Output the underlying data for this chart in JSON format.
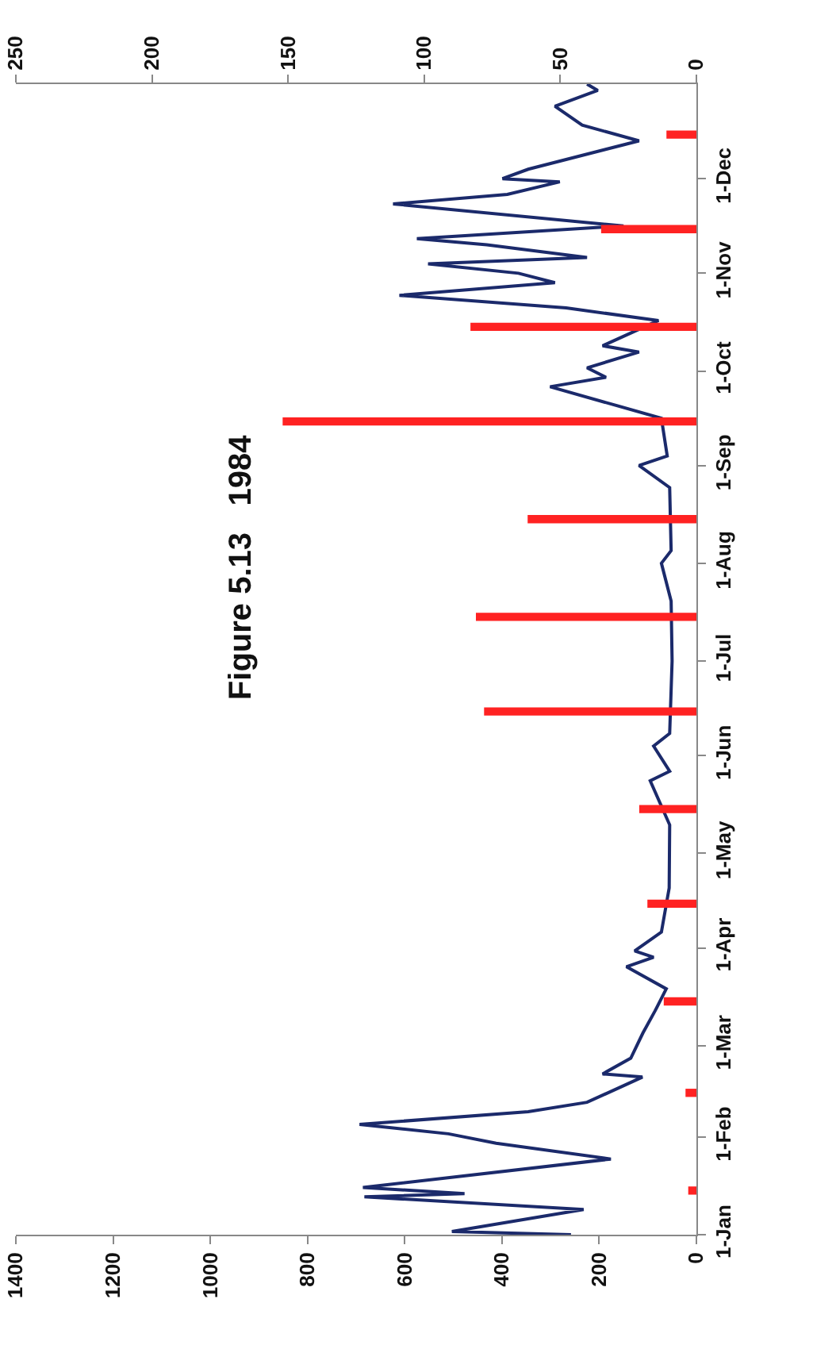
{
  "chart_data": {
    "type": "line",
    "title": "Figure 5.13   1984",
    "orientation": "horizontal",
    "series": [
      {
        "type": "bar",
        "axis": "x2",
        "color": "#ff2222",
        "x": [
          "--01-15",
          "--02-15",
          "--03-15",
          "--04-15",
          "--05-15",
          "--06-15",
          "--07-15",
          "--08-15",
          "--09-15",
          "--10-15",
          "--11-15",
          "--12-15"
        ],
        "values": [
          3,
          4,
          12,
          18,
          21,
          78,
          81,
          62,
          152,
          83,
          35,
          11
        ]
      },
      {
        "color": "#1b2a6b",
        "x": [
          "--01-01",
          "--01-02",
          "--01-09",
          "--01-13",
          "--01-14",
          "--01-16",
          "--01-25",
          "--01-30",
          "--02-02",
          "--02-05",
          "--02-09",
          "--02-12",
          "--02-20",
          "--02-21",
          "--02-26",
          "--03-05",
          "--03-12",
          "--03-19",
          "--03-26",
          "--03-29",
          "--03-31",
          "--04-06",
          "--04-20",
          "--05-10",
          "--05-24",
          "--05-27",
          "--06-04",
          "--06-08",
          "--07-01",
          "--07-20",
          "--08-01",
          "--08-05",
          "--08-25",
          "--09-01",
          "--09-04",
          "--09-16",
          "--09-26",
          "--09-29",
          "--10-02",
          "--10-07",
          "--10-09",
          "--10-17",
          "--10-21",
          "--10-25",
          "--10-29",
          "--11-01",
          "--11-04",
          "--11-06",
          "--11-10",
          "--11-12",
          "--11-16",
          "--11-23",
          "--11-26",
          "--11-30",
          "--12-01",
          "--12-04",
          "--12-13",
          "--12-18",
          "--12-24",
          "--12-29",
          "--12-31"
        ],
        "values": [
          258,
          503,
          232,
          683,
          477,
          686,
          176,
          412,
          510,
          693,
          346,
          225,
          111,
          193,
          135,
          110,
          85,
          62,
          144,
          88,
          127,
          72,
          56,
          55,
          95,
          55,
          88,
          55,
          50,
          52,
          72,
          52,
          55,
          118,
          60,
          72,
          301,
          186,
          225,
          118,
          193,
          78,
          268,
          611,
          291,
          366,
          552,
          225,
          431,
          575,
          150,
          624,
          389,
          281,
          399,
          346,
          118,
          235,
          291,
          203,
          225
        ]
      }
    ],
    "xlim": [
      1400,
      0
    ],
    "xticks": [
      0,
      200,
      400,
      600,
      800,
      1000,
      1200,
      1400
    ],
    "x2lim": [
      250,
      0
    ],
    "x2ticks": [
      0,
      50,
      100,
      150,
      200,
      250
    ],
    "ylim": [
      "--01-01",
      "--12-31"
    ],
    "yticks": [
      {
        "value": "--01-01",
        "label": "1-Jan"
      },
      {
        "value": "--02-01",
        "label": "1-Feb"
      },
      {
        "value": "--03-01",
        "label": "1-Mar"
      },
      {
        "value": "--04-01",
        "label": "1-Apr"
      },
      {
        "value": "--05-01",
        "label": "1-May"
      },
      {
        "value": "--06-01",
        "label": "1-Jun"
      },
      {
        "value": "--07-01",
        "label": "1-Jul"
      },
      {
        "value": "--08-01",
        "label": "1-Aug"
      },
      {
        "value": "--09-01",
        "label": "1-Sep"
      },
      {
        "value": "--10-01",
        "label": "1-Oct"
      },
      {
        "value": "--11-01",
        "label": "1-Nov"
      },
      {
        "value": "--12-01",
        "label": "1-Dec"
      }
    ],
    "marker": "none",
    "line_style": "solid"
  }
}
